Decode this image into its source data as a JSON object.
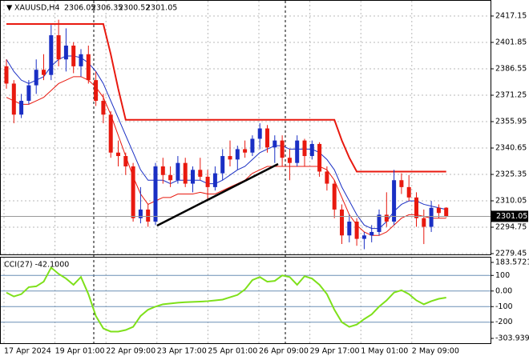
{
  "chart_data": [
    {
      "type": "candlestick",
      "title": "XAUUSD,H4",
      "open": [
        2388,
        2378,
        2360,
        2368,
        2377,
        2386,
        2383,
        2406,
        2392,
        2400,
        2388,
        2395,
        2380,
        2368,
        2360,
        2338,
        2336,
        2330,
        2300,
        2305,
        2298,
        2330,
        2325,
        2322,
        2332,
        2320,
        2328,
        2324,
        2318,
        2326,
        2336,
        2334,
        2340,
        2338,
        2346,
        2352,
        2341,
        2345,
        2335,
        2332,
        2345,
        2336,
        2343,
        2327,
        2320,
        2305,
        2290,
        2298,
        2288,
        2290,
        2292,
        2302,
        2298,
        2322,
        2318,
        2312,
        2300,
        2295,
        2306,
        2306.05
      ],
      "high": [
        2392,
        2380,
        2372,
        2380,
        2392,
        2395,
        2412,
        2415,
        2410,
        2402,
        2398,
        2400,
        2385,
        2372,
        2362,
        2345,
        2338,
        2332,
        2318,
        2308,
        2332,
        2335,
        2330,
        2336,
        2335,
        2330,
        2335,
        2328,
        2330,
        2340,
        2345,
        2342,
        2345,
        2348,
        2355,
        2354,
        2348,
        2348,
        2340,
        2348,
        2346,
        2345,
        2344,
        2330,
        2322,
        2308,
        2302,
        2300,
        2292,
        2296,
        2305,
        2315,
        2328,
        2326,
        2325,
        2315,
        2305,
        2310,
        2308,
        2306.35
      ],
      "low": [
        2375,
        2355,
        2358,
        2366,
        2372,
        2380,
        2380,
        2388,
        2385,
        2384,
        2382,
        2378,
        2365,
        2355,
        2335,
        2330,
        2325,
        2298,
        2297,
        2295,
        2296,
        2320,
        2318,
        2320,
        2318,
        2315,
        2322,
        2310,
        2316,
        2322,
        2330,
        2328,
        2335,
        2336,
        2340,
        2338,
        2332,
        2330,
        2322,
        2330,
        2330,
        2334,
        2324,
        2316,
        2300,
        2285,
        2286,
        2284,
        2282,
        2286,
        2290,
        2295,
        2296,
        2314,
        2310,
        2295,
        2285,
        2292,
        2300,
        2300.52
      ],
      "close": [
        2378,
        2360,
        2368,
        2377,
        2386,
        2383,
        2406,
        2392,
        2400,
        2388,
        2395,
        2380,
        2368,
        2360,
        2338,
        2336,
        2330,
        2300,
        2305,
        2298,
        2330,
        2325,
        2322,
        2332,
        2320,
        2328,
        2324,
        2318,
        2326,
        2336,
        2334,
        2340,
        2338,
        2346,
        2352,
        2341,
        2345,
        2335,
        2332,
        2345,
        2336,
        2343,
        2327,
        2320,
        2305,
        2290,
        2298,
        2288,
        2290,
        2292,
        2302,
        2298,
        2322,
        2318,
        2312,
        2300,
        2295,
        2306,
        2303,
        2301.05
      ],
      "up_color": "#1a2fc4",
      "down_color": "#e8190f",
      "series": [
        {
          "color": "#1a2fc4",
          "values": [
            2392,
            2385,
            2380,
            2378,
            2380,
            2382,
            2388,
            2392,
            2394,
            2394,
            2393,
            2390,
            2385,
            2378,
            2368,
            2358,
            2348,
            2338,
            2328,
            2322,
            2322,
            2322,
            2320,
            2322,
            2322,
            2322,
            2322,
            2320,
            2320,
            2322,
            2325,
            2328,
            2330,
            2334,
            2338,
            2340,
            2342,
            2342,
            2340,
            2340,
            2340,
            2340,
            2338,
            2334,
            2328,
            2318,
            2310,
            2302,
            2296,
            2294,
            2294,
            2298,
            2304,
            2308,
            2310,
            2310,
            2308,
            2307,
            2306,
            2305
          ]
        },
        {
          "color": "#e8190f",
          "values": [
            2370,
            2368,
            2366,
            2366,
            2368,
            2370,
            2374,
            2378,
            2380,
            2382,
            2382,
            2380,
            2376,
            2370,
            2360,
            2348,
            2336,
            2324,
            2314,
            2308,
            2310,
            2312,
            2312,
            2314,
            2314,
            2314,
            2315,
            2314,
            2314,
            2316,
            2318,
            2320,
            2322,
            2326,
            2328,
            2330,
            2330,
            2330,
            2330,
            2330,
            2330,
            2330,
            2330,
            2328,
            2322,
            2312,
            2302,
            2296,
            2292,
            2290,
            2290,
            2292,
            2296,
            2300,
            2302,
            2302,
            2301,
            2300,
            2300,
            2300
          ]
        },
        {
          "color": "#e8190f",
          "values": [
            2412.5,
            2412.5,
            2412.5,
            2412.5,
            2412.5,
            2412.5,
            2412.5,
            2412.5,
            2412.5,
            2412.5,
            2412.5,
            2412.5,
            2412.5,
            2412.5,
            2395,
            2375,
            2357,
            2357,
            2357,
            2357,
            2357,
            2357,
            2357,
            2357,
            2357,
            2357,
            2357,
            2357,
            2357,
            2357,
            2357,
            2357,
            2357,
            2357,
            2357,
            2357,
            2357,
            2357,
            2357,
            2357,
            2357,
            2357,
            2357,
            2357,
            2357,
            2345,
            2335,
            2327,
            2327,
            2327,
            2327,
            2327,
            2327,
            2327,
            2327,
            2327,
            2327,
            2327,
            2327,
            2327
          ]
        }
      ],
      "ylim": [
        2279.0,
        2425.5
      ],
      "yticks": [
        2417.15,
        2401.85,
        2386.55,
        2371.25,
        2355.95,
        2340.65,
        2325.35,
        2310.05,
        2294.75,
        2279.45
      ],
      "xtick_labels": [
        "17 Apr 2024",
        "19 Apr 01:00",
        "22 Apr 09:00",
        "23 Apr 17:00",
        "25 Apr 01:00",
        "26 Apr 09:00",
        "29 Apr 17:00",
        "1 May 01:00",
        "2 May 09:00"
      ],
      "grid": true
    },
    {
      "type": "line",
      "title": "CCI(27) -42.1000",
      "color": "#7ee01a",
      "values": [
        -10,
        -35,
        -20,
        25,
        30,
        60,
        150,
        110,
        80,
        40,
        90,
        -20,
        -160,
        -240,
        -260,
        -260,
        -250,
        -230,
        -160,
        -120,
        -100,
        -85,
        -80,
        -75,
        -72,
        -70,
        -68,
        -65,
        -60,
        -55,
        -40,
        -25,
        10,
        70,
        90,
        60,
        65,
        100,
        90,
        40,
        95,
        80,
        40,
        -20,
        -120,
        -200,
        -230,
        -215,
        -180,
        -150,
        -100,
        -60,
        -10,
        5,
        -20,
        -60,
        -85,
        -65,
        -50,
        -42.1
      ],
      "ylim": [
        -303.9395,
        183.5721
      ],
      "yticks": [
        183.5721,
        100,
        {
          "value": 0,
          "label": "0.00"
        },
        -100,
        -200,
        -303.9395
      ],
      "levels": [
        100,
        0,
        -100,
        -200
      ]
    }
  ]
}
